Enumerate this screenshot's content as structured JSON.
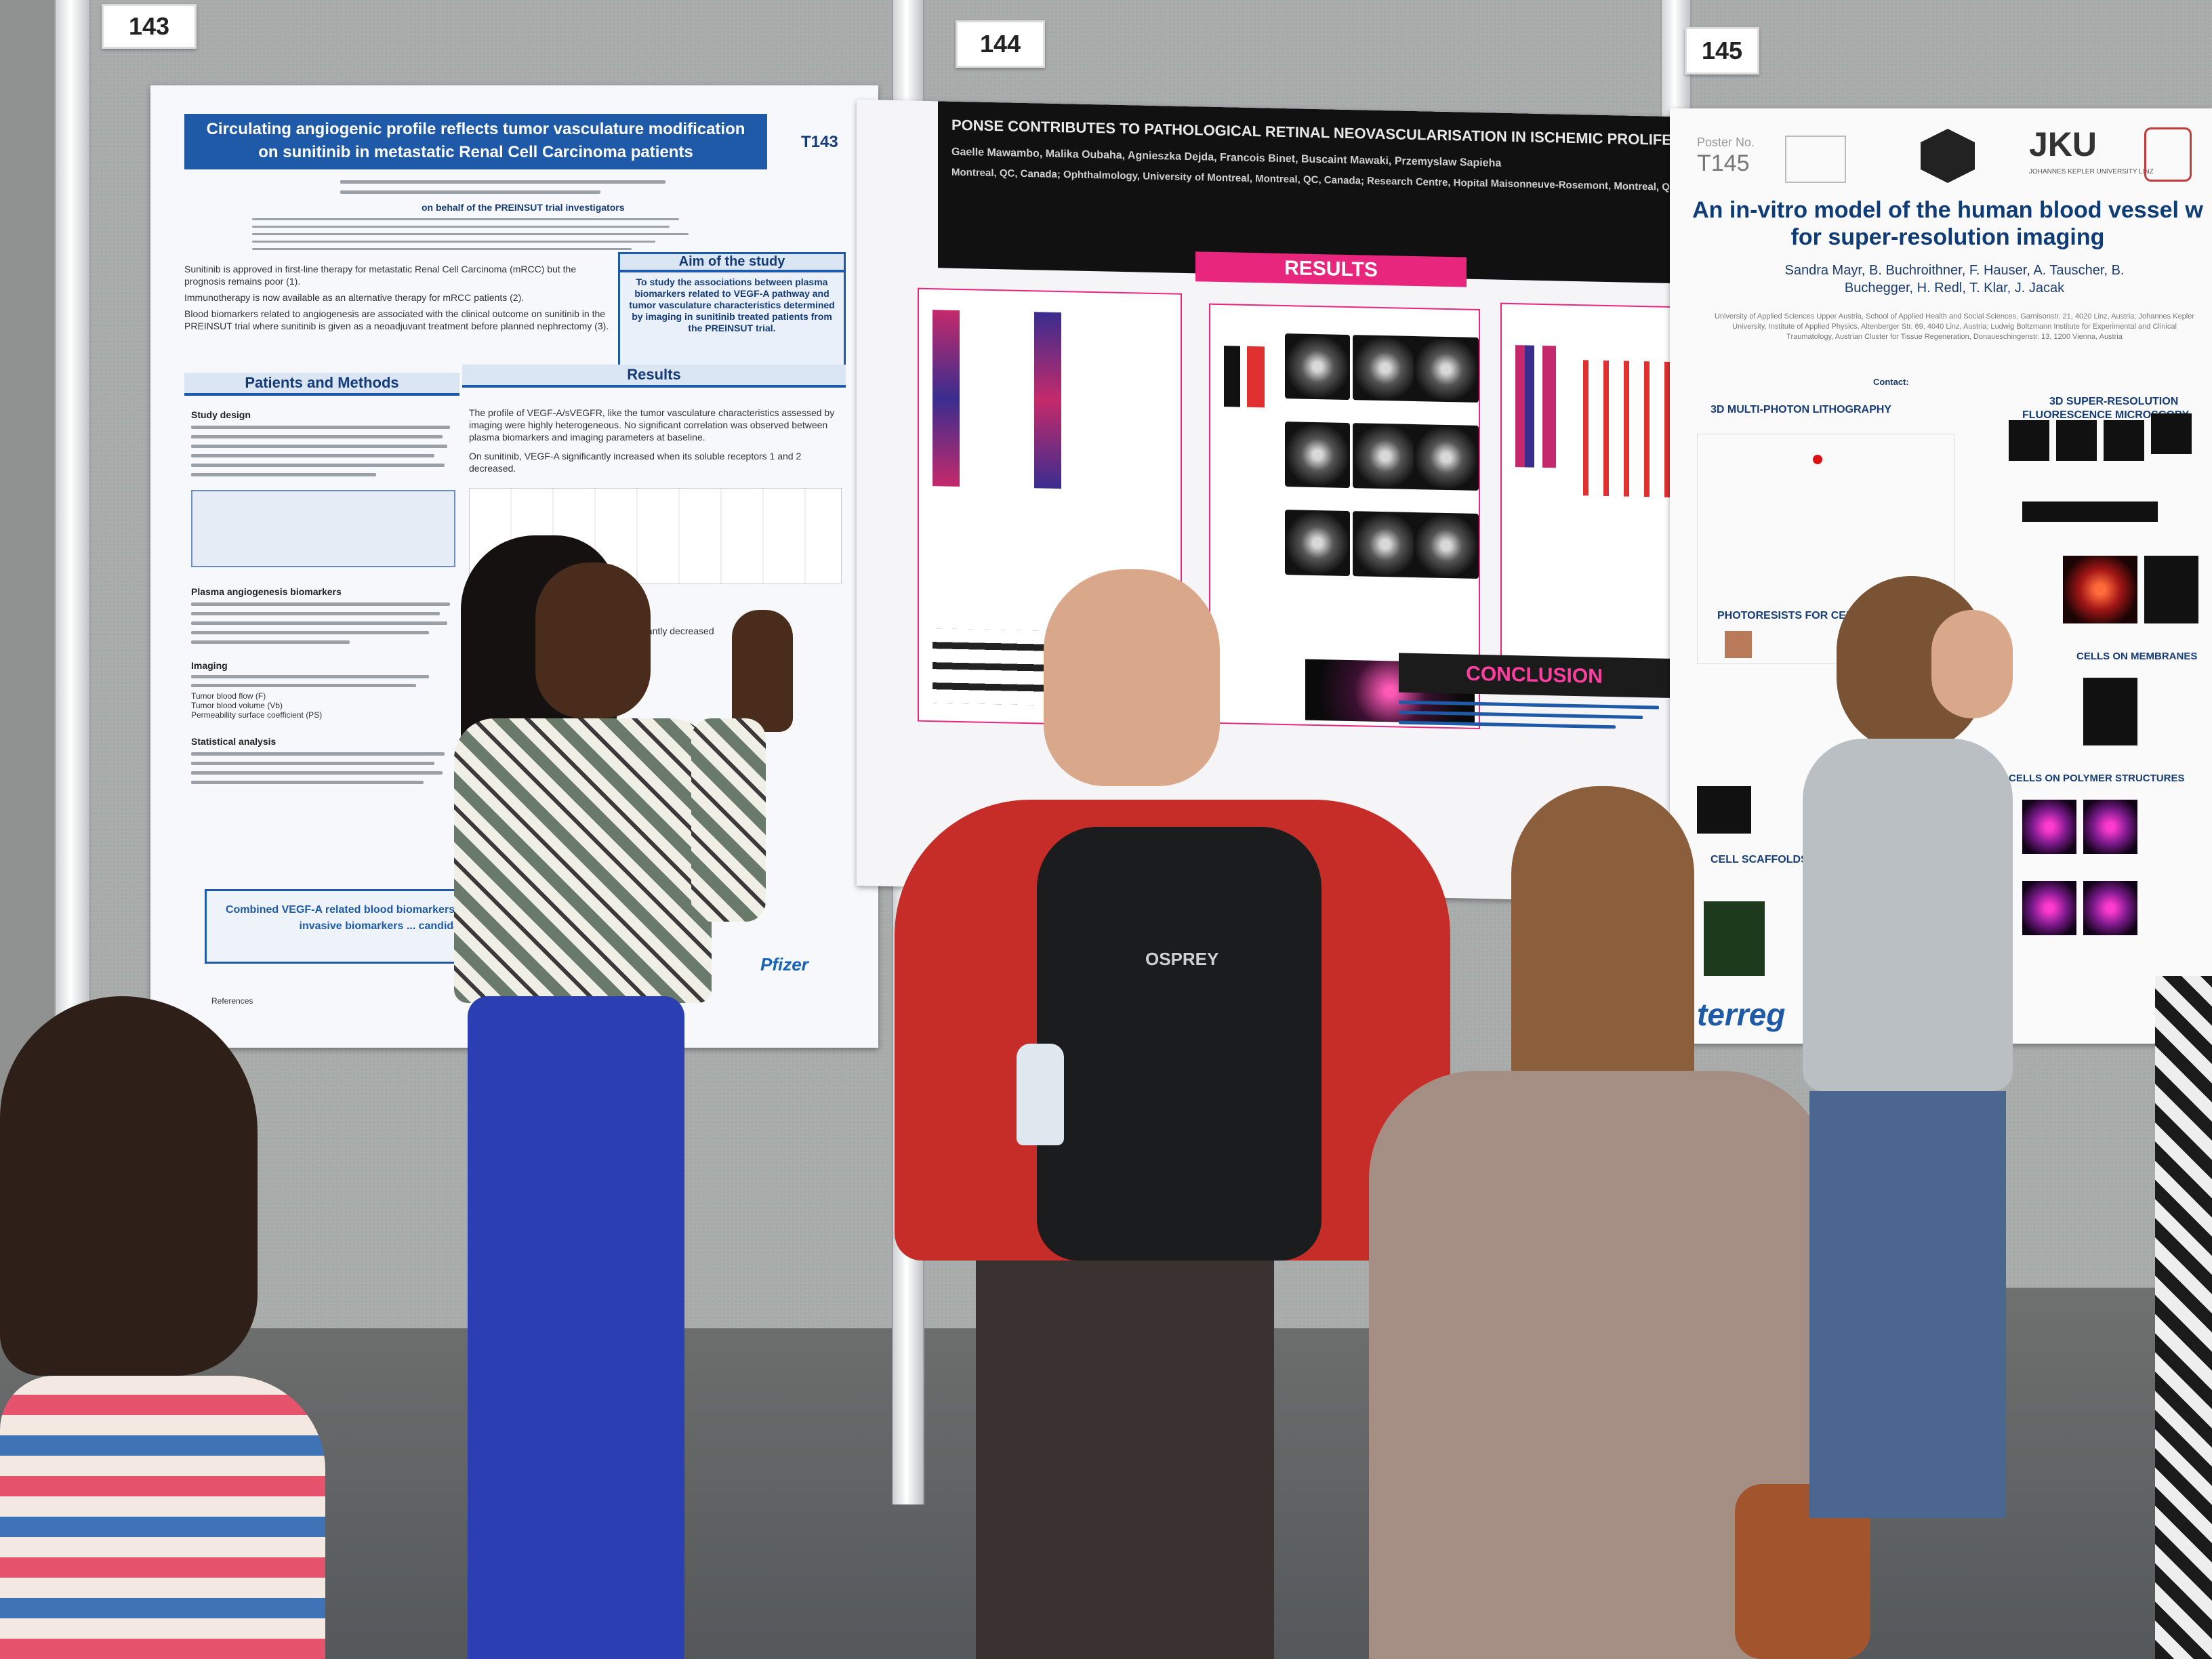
{
  "scene": {
    "description_tags": [
      "poster-session",
      "conference",
      "people"
    ]
  },
  "boards": {
    "b143": "143",
    "b144": "144",
    "b145": "145"
  },
  "poster143": {
    "title_line1": "Circulating angiogenic profile reflects tumor vasculature modification",
    "title_line2": "on sunitinib in metastatic Renal Cell Carcinoma patients",
    "code": "T143",
    "consortium": "on behalf of the PREINSUT trial investigators",
    "aim_heading": "Aim of the study",
    "aim_text": "To study the associations between plasma biomarkers related to VEGF-A pathway and tumor vasculature characteristics determined by imaging in sunitinib treated patients from the PREINSUT trial.",
    "bullets": [
      "Sunitinib is approved in first-line therapy for metastatic Renal Cell Carcinoma (mRCC) but the prognosis remains poor (1).",
      "Immunotherapy is now available as an alternative therapy for mRCC patients (2).",
      "Blood biomarkers related to angiogenesis are associated with the clinical outcome on sunitinib in the PREINSUT trial where sunitinib is given as a neoadjuvant treatment before planned nephrectomy (3)."
    ],
    "methods_heading": "Patients and Methods",
    "results_heading": "Results",
    "study_design": "Study design",
    "plasma_heading": "Plasma angiogenesis biomarkers",
    "imaging_heading": "Imaging",
    "imaging_items": [
      "Tumor blood flow (F)",
      "Tumor blood volume (Vb)",
      "Permeability surface coefficient (PS)"
    ],
    "statistical_heading": "Statistical analysis",
    "results_text": "The profile of VEGF-A/sVEGFR, like the tumor vasculature characteristics assessed by imaging were highly heterogeneous. No significant correlation was observed between plasma biomarkers and imaging parameters at baseline.",
    "results_text2": "On sunitinib, VEGF-A significantly increased when its soluble receptors 1 and 2 decreased.",
    "results_text3": "significantly decreased",
    "conclusion_text": "Combined VEGF-A related blood biomarkers ... on sunitinib. Being non invasive biomarkers ... candidate to follow",
    "sponsor": "Pfizer",
    "references": "References"
  },
  "poster144": {
    "title": "PONSE CONTRIBUTES TO PATHOLOGICAL RETINAL NEOVASCULARISATION IN ISCHEMIC PROLIFERATIVE RETINOPATHY",
    "authors": "Gaelle Mawambo, Malika Oubaha, Agnieszka Dejda, Francois Binet, Buscaint Mawaki, Przemyslaw Sapieha",
    "affiliation": "Montreal, QC, Canada; Ophthalmology, University of Montreal, Montreal, QC, Canada; Research Centre, Hopital Maisonneuve-Rosemont, Montreal, QC, Canada",
    "results_heading": "RESULTS",
    "conclusion_heading": "CONCLUSION"
  },
  "poster145": {
    "poster_no_label": "Poster No.",
    "poster_no": "T145",
    "logos": [
      "JKU"
    ],
    "logo_caption": "JOHANNES KEPLER UNIVERSITY LINZ",
    "title_line1": "An in-vitro model of the human blood vessel w",
    "title_line2": "for super-resolution imaging",
    "authors": "Sandra Mayr, B. Buchroithner, F. Hauser, A. Tauscher, B. Buchegger, H. Redl, T. Klar, J. Jacak",
    "affiliation": "University of Applied Sciences Upper Austria, School of Applied Health and Social Sciences, Garnisonstr. 21, 4020 Linz, Austria; Johannes Kepler University, Institute of Applied Physics, Altenberger Str. 69, 4040 Linz, Austria; Ludwig Boltzmann Institute for Experimental and Clinical Traumatology, Austrian Cluster for Tissue Regeneration, Donaueschingenstr. 13, 1200 Vienna, Austria",
    "contact": "Contact:",
    "sections": {
      "lithography": "3D MULTI-PHOTON LITHOGRAPHY",
      "microscopy_1": "3D SUPER-RESOLUTION",
      "microscopy_2": "FLUORESCENCE MICROSCOPY",
      "photoresists": "PHOTORESISTS FOR CELL SCAFFOLDS",
      "membranes": "CELLS ON MEMBRANES",
      "polymer": "CELLS ON POLYMER STRUCTURES",
      "scaffolds": "CELL SCAFFOLDS"
    },
    "footer_fragment": "terreg"
  },
  "badges": {
    "lanyard_fragment": "OSPREY",
    "backpack_brand": "OSPREY"
  },
  "colors": {
    "poster143_accent": "#1f5aa8",
    "poster144_accent": "#e8267e",
    "poster145_accent": "#0e3c76",
    "board_felt": "#a7abaa"
  }
}
